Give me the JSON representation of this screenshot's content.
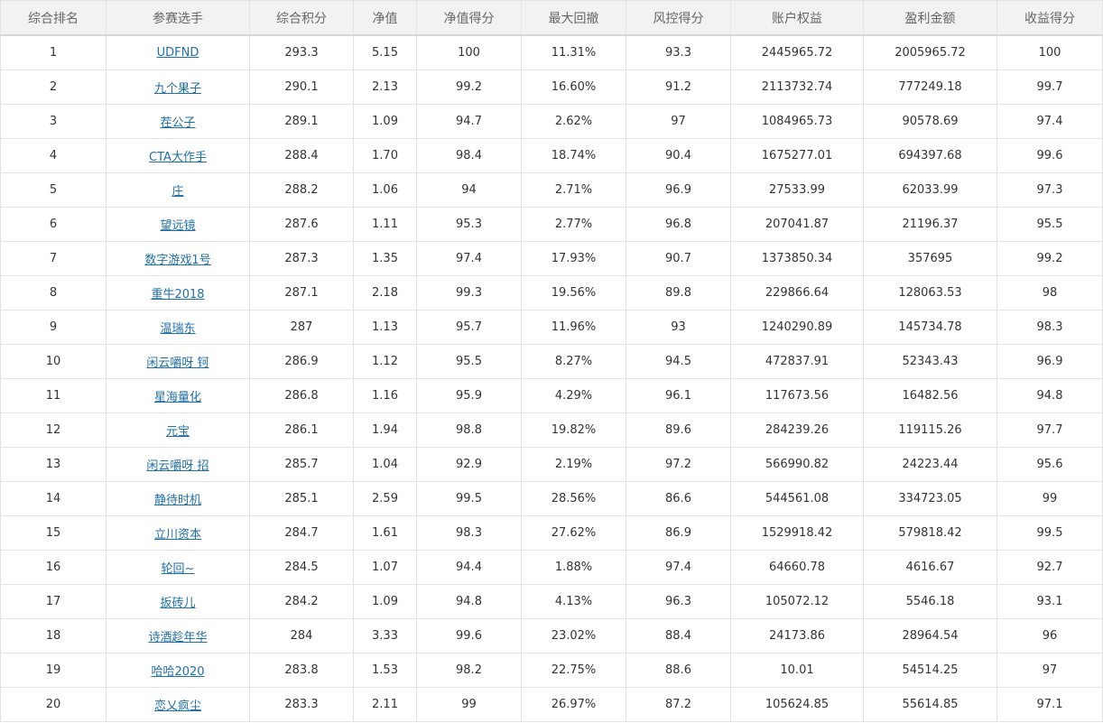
{
  "table": {
    "columns": [
      "综合排名",
      "参赛选手",
      "综合积分",
      "净值",
      "净值得分",
      "最大回撤",
      "风控得分",
      "账户权益",
      "盈利金额",
      "收益得分"
    ],
    "rows": [
      [
        "1",
        "UDFND",
        "293.3",
        "5.15",
        "100",
        "11.31%",
        "93.3",
        "2445965.72",
        "2005965.72",
        "100"
      ],
      [
        "2",
        "九个果子",
        "290.1",
        "2.13",
        "99.2",
        "16.60%",
        "91.2",
        "2113732.74",
        "777249.18",
        "99.7"
      ],
      [
        "3",
        "茬公子",
        "289.1",
        "1.09",
        "94.7",
        "2.62%",
        "97",
        "1084965.73",
        "90578.69",
        "97.4"
      ],
      [
        "4",
        "CTA大作手",
        "288.4",
        "1.70",
        "98.4",
        "18.74%",
        "90.4",
        "1675277.01",
        "694397.68",
        "99.6"
      ],
      [
        "5",
        "庄",
        "288.2",
        "1.06",
        "94",
        "2.71%",
        "96.9",
        "27533.99",
        "62033.99",
        "97.3"
      ],
      [
        "6",
        "望远镜",
        "287.6",
        "1.11",
        "95.3",
        "2.77%",
        "96.8",
        "207041.87",
        "21196.37",
        "95.5"
      ],
      [
        "7",
        "数字游戏1号",
        "287.3",
        "1.35",
        "97.4",
        "17.93%",
        "90.7",
        "1373850.34",
        "357695",
        "99.2"
      ],
      [
        "8",
        "重牛2018",
        "287.1",
        "2.18",
        "99.3",
        "19.56%",
        "89.8",
        "229866.64",
        "128063.53",
        "98"
      ],
      [
        "9",
        "温瑞东",
        "287",
        "1.13",
        "95.7",
        "11.96%",
        "93",
        "1240290.89",
        "145734.78",
        "98.3"
      ],
      [
        "10",
        "闲云嚼呀 钶",
        "286.9",
        "1.12",
        "95.5",
        "8.27%",
        "94.5",
        "472837.91",
        "52343.43",
        "96.9"
      ],
      [
        "11",
        "星海量化",
        "286.8",
        "1.16",
        "95.9",
        "4.29%",
        "96.1",
        "117673.56",
        "16482.56",
        "94.8"
      ],
      [
        "12",
        "元宝",
        "286.1",
        "1.94",
        "98.8",
        "19.82%",
        "89.6",
        "284239.26",
        "119115.26",
        "97.7"
      ],
      [
        "13",
        "闲云嚼呀 招",
        "285.7",
        "1.04",
        "92.9",
        "2.19%",
        "97.2",
        "566990.82",
        "24223.44",
        "95.6"
      ],
      [
        "14",
        "静待时机",
        "285.1",
        "2.59",
        "99.5",
        "28.56%",
        "86.6",
        "544561.08",
        "334723.05",
        "99"
      ],
      [
        "15",
        "立川资本",
        "284.7",
        "1.61",
        "98.3",
        "27.62%",
        "86.9",
        "1529918.42",
        "579818.42",
        "99.5"
      ],
      [
        "16",
        "轮回~",
        "284.5",
        "1.07",
        "94.4",
        "1.88%",
        "97.4",
        "64660.78",
        "4616.67",
        "92.7"
      ],
      [
        "17",
        "扳砖儿",
        "284.2",
        "1.09",
        "94.8",
        "4.13%",
        "96.3",
        "105072.12",
        "5546.18",
        "93.1"
      ],
      [
        "18",
        "诗酒趁年华",
        "284",
        "3.33",
        "99.6",
        "23.02%",
        "88.4",
        "24173.86",
        "28964.54",
        "96"
      ],
      [
        "19",
        "哈哈2020",
        "283.8",
        "1.53",
        "98.2",
        "22.75%",
        "88.6",
        "10.01",
        "54514.25",
        "97"
      ],
      [
        "20",
        "恋乂疯尘",
        "283.3",
        "2.11",
        "99",
        "26.97%",
        "87.2",
        "105624.85",
        "55614.85",
        "97.1"
      ]
    ]
  },
  "colors": {
    "header_bg": "#f2f2f2",
    "border": "#e3e3e3",
    "link": "#1f6fa8",
    "text": "#333333"
  }
}
